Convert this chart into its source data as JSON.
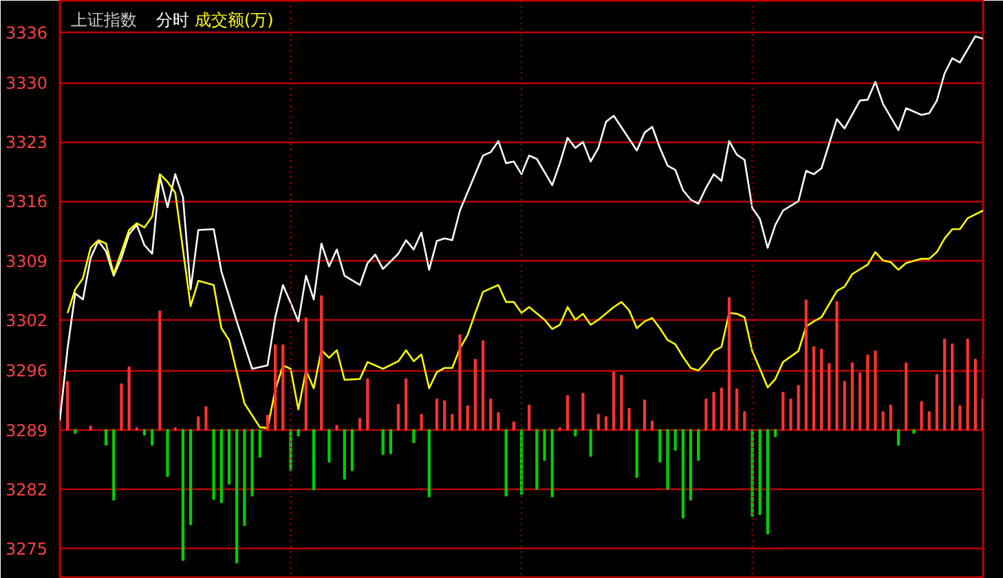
{
  "chart_data": {
    "type": "line",
    "title": "上证指数",
    "grid": true,
    "tick_labels": "y",
    "marker": "none",
    "line_style": "solid",
    "categories": [
      null,
      null,
      null,
      null,
      null,
      null,
      null,
      null,
      null,
      null,
      null,
      null,
      null,
      null,
      null,
      null,
      null,
      null,
      null,
      null,
      null,
      null,
      null,
      null,
      null,
      null,
      null,
      null,
      null,
      null,
      null,
      null,
      null,
      null,
      null,
      null,
      null,
      null,
      null,
      null,
      null,
      null,
      null,
      null,
      null,
      null,
      null,
      null,
      null,
      null,
      null,
      null,
      null,
      null,
      null,
      null,
      null,
      null,
      null,
      null,
      null,
      null,
      null,
      null,
      null,
      null,
      null,
      null,
      null,
      null,
      null,
      null,
      null,
      null,
      null,
      null,
      null,
      null,
      null,
      null,
      null,
      null,
      null,
      null,
      null,
      null,
      null,
      null,
      null,
      null,
      null,
      null,
      null,
      null,
      null,
      null,
      null,
      null,
      null,
      null,
      null,
      null,
      null,
      null,
      null,
      null,
      null,
      null,
      null,
      null,
      null,
      null,
      null,
      null,
      null,
      null,
      null,
      null,
      null,
      null,
      null
    ],
    "ylim": [
      3271.4,
      3339.7
    ],
    "yticks": [
      3275,
      3282,
      3289,
      3296,
      3302,
      3309,
      3316,
      3323,
      3330,
      3336
    ],
    "series": [
      {
        "name": "分时",
        "color": "#ffffff",
        "values": [
          3290.1,
          3298.6,
          3305.1,
          3304.4,
          3309.3,
          3311.3,
          3310.1,
          3307.2,
          3309.3,
          3312.1,
          3313.2,
          3310.8,
          3309.8,
          3318.9,
          3315.3,
          3319.2,
          3316.5,
          3305.6,
          3312.6,
          null,
          3312.7,
          3307.7,
          null,
          3301.8,
          null,
          3296.2,
          null,
          3296.6,
          3302.3,
          3306.1,
          3304.0,
          3301.8,
          3307.2,
          3304.4,
          3311.0,
          3308.3,
          3310.3,
          3307.2,
          null,
          3306.1,
          3308.7,
          3309.7,
          3308.0,
          null,
          3309.8,
          3311.4,
          3310.3,
          3312.3,
          3307.9,
          3311.3,
          3311.6,
          3311.4,
          3314.9,
          null,
          null,
          3321.4,
          3321.8,
          3323.1,
          3320.5,
          3320.7,
          3319.2,
          3321.4,
          3321.0,
          null,
          3317.9,
          3320.5,
          3323.5,
          3322.3,
          3323.0,
          3320.7,
          3322.3,
          3325.4,
          3326.1,
          null,
          null,
          3322.0,
          3324.1,
          3324.8,
          3322.3,
          3320.2,
          3319.7,
          3317.3,
          3316.2,
          3315.7,
          3317.6,
          3319.2,
          3318.4,
          3323.1,
          3321.5,
          3320.9,
          3315.2,
          3313.9,
          3310.5,
          3313.2,
          3314.9,
          null,
          3316.0,
          3319.6,
          3319.2,
          3319.9,
          null,
          3325.7,
          3324.6,
          null,
          3327.9,
          3328.0,
          3330.1,
          3327.5,
          null,
          3324.4,
          3327.0,
          null,
          3326.2,
          3326.4,
          3327.9,
          3331.1,
          3332.9,
          3332.4,
          null,
          3335.5,
          3335.2
        ]
      },
      {
        "name": "成交额(万)",
        "color": "#ffff00",
        "values": [
          null,
          3302.8,
          3305.6,
          3306.9,
          3310.5,
          3311.4,
          3311.0,
          3307.4,
          3310.0,
          3312.6,
          3313.4,
          3312.9,
          3314.2,
          3319.2,
          3318.3,
          3317.0,
          null,
          3303.6,
          3306.6,
          null,
          3306.1,
          3301.0,
          3299.6,
          3295.8,
          3292.1,
          null,
          3289.3,
          3289.2,
          3293.7,
          3296.6,
          3296.2,
          3291.4,
          3296.0,
          3293.9,
          3298.4,
          3297.5,
          3298.4,
          3294.9,
          null,
          3295.0,
          3297.0,
          null,
          3296.2,
          null,
          3297.1,
          3298.4,
          3297.1,
          3297.9,
          3293.9,
          3295.8,
          3296.3,
          3296.3,
          3298.6,
          3300.2,
          3302.8,
          3305.3,
          null,
          3306.1,
          3304.1,
          3304.1,
          3302.8,
          3303.5,
          null,
          3302.0,
          3300.9,
          3301.4,
          3303.5,
          3302.0,
          3302.7,
          3301.4,
          3302.0,
          null,
          3303.5,
          3304.1,
          3303.1,
          3301.0,
          3301.8,
          3302.2,
          3301.0,
          3299.6,
          3299.1,
          3297.6,
          3296.3,
          3296.0,
          3297.0,
          3298.3,
          3298.8,
          3302.8,
          3302.7,
          3302.3,
          3298.3,
          3296.2,
          3294.0,
          3295.0,
          3297.0,
          null,
          3298.3,
          3301.2,
          3301.8,
          3302.3,
          null,
          3305.4,
          3305.9,
          3307.4,
          null,
          3308.5,
          3310.0,
          3309.0,
          3308.8,
          3307.9,
          3308.7,
          null,
          3309.2,
          3309.2,
          3310.0,
          3311.6,
          3312.7,
          3312.7,
          3314.0,
          null,
          3314.9
        ]
      },
      {
        "type": "bar",
        "values": [
          null,
          5.7,
          -0.4,
          null,
          0.4,
          null,
          -1.8,
          -8.3,
          5.4,
          7.4,
          0.2,
          -0.6,
          -1.8,
          14.0,
          -5.5,
          0.2,
          -15.4,
          -11.2,
          1.5,
          2.7,
          -8.2,
          -8.6,
          -6.4,
          -15.7,
          -11.3,
          -7.8,
          -3.2,
          1.7,
          10.0,
          10.0,
          -4.8,
          -0.7,
          13.2,
          -7.1,
          15.8,
          -3.8,
          0.5,
          -5.8,
          -4.8,
          1.3,
          6.0,
          null,
          -2.9,
          -2.8,
          3.0,
          6.0,
          -1.5,
          1.8,
          -7.9,
          3.6,
          3.4,
          1.8,
          11.2,
          2.8,
          8.3,
          10.5,
          3.6,
          2.0,
          -7.8,
          0.9,
          -7.6,
          2.9,
          -7.0,
          -3.6,
          -7.9,
          0.2,
          4.0,
          -0.7,
          4.3,
          -3.1,
          1.8,
          1.5,
          6.8,
          6.4,
          2.5,
          -5.6,
          3.5,
          1.0,
          -3.8,
          -7.0,
          -2.4,
          -10.4,
          -8.3,
          -3.6,
          3.6,
          4.4,
          4.9,
          15.6,
          4.8,
          2.1,
          -10.2,
          -10.0,
          -12.3,
          -0.8,
          4.4,
          3.6,
          5.2,
          15.3,
          9.8,
          9.5,
          7.8,
          15.1,
          5.7,
          7.9,
          6.7,
          8.8,
          9.3,
          2.1,
          2.9,
          -1.8,
          7.9,
          -0.4,
          3.3,
          2.1,
          6.5,
          10.7,
          10.1,
          2.8,
          10.7,
          8.3,
          3.6
        ],
        "colors": [
          "#ff3232",
          "#ff3232",
          "#00d000",
          "#ff3232",
          "#ff3232",
          "#ff3232",
          "#00d000",
          "#00d000",
          "#ff3232",
          "#ff3232",
          "#ff3232",
          "#00d000",
          "#00d000",
          "#ff3232",
          "#00d000",
          "#ff3232",
          "#00d000",
          "#00d000",
          "#ff3232",
          "#ff3232",
          "#00d000",
          "#00d000",
          "#00d000",
          "#00d000",
          "#00d000",
          "#00d000",
          "#00d000",
          "#ff3232",
          "#ff3232",
          "#ff3232",
          "#00d000",
          "#00d000",
          "#ff3232",
          "#00d000",
          "#ff3232",
          "#00d000",
          "#ff3232",
          "#00d000",
          "#00d000",
          "#ff3232",
          "#ff3232",
          "#ff3232",
          "#00d000",
          "#00d000",
          "#ff3232",
          "#ff3232",
          "#00d000",
          "#ff3232",
          "#00d000",
          "#ff3232",
          "#ff3232",
          "#ff3232",
          "#ff3232",
          "#ff3232",
          "#ff3232",
          "#ff3232",
          "#ff3232",
          "#ff3232",
          "#00d000",
          "#ff3232",
          "#00d000",
          "#ff3232",
          "#00d000",
          "#00d000",
          "#00d000",
          "#ff3232",
          "#ff3232",
          "#00d000",
          "#ff3232",
          "#00d000",
          "#ff3232",
          "#ff3232",
          "#ff3232",
          "#ff3232",
          "#ff3232",
          "#00d000",
          "#ff3232",
          "#ff3232",
          "#00d000",
          "#00d000",
          "#00d000",
          "#00d000",
          "#00d000",
          "#00d000",
          "#ff3232",
          "#ff3232",
          "#ff3232",
          "#ff3232",
          "#ff3232",
          "#ff3232",
          "#00d000",
          "#00d000",
          "#00d000",
          "#00d000",
          "#ff3232",
          "#ff3232",
          "#ff3232",
          "#ff3232",
          "#ff3232",
          "#ff3232",
          "#ff3232",
          "#ff3232",
          "#ff3232",
          "#ff3232",
          "#ff3232",
          "#ff3232",
          "#ff3232",
          "#ff3232",
          "#ff3232",
          "#00d000",
          "#ff3232",
          "#00d000",
          "#ff3232",
          "#ff3232",
          "#ff3232",
          "#ff3232",
          "#ff3232",
          "#ff3232",
          "#ff3232",
          "#ff3232",
          "#ff3232"
        ],
        "base": [
          null,
          3289,
          3289,
          null,
          3289,
          null,
          3289,
          3289,
          3289,
          3289,
          3289,
          3289,
          3289,
          3289,
          3289,
          3289,
          3289,
          3289,
          3289,
          3289,
          3289,
          3289,
          3289,
          3289,
          3289,
          3289,
          3289,
          3289,
          3289,
          3289,
          3289,
          3289,
          3289,
          3289,
          3289,
          3289,
          3289,
          3289,
          3289,
          3289,
          3289,
          null,
          3289,
          3289,
          3289,
          3289,
          3289,
          3289,
          3289,
          3289,
          3289,
          3289,
          3289,
          3289,
          3289,
          3289,
          3289,
          3289,
          3289,
          3289,
          3289,
          3289,
          3289,
          3289,
          3289,
          3289,
          3289,
          3289,
          3289,
          3289,
          3289,
          3289,
          3289,
          3289,
          3289,
          3289,
          3289,
          3289,
          3289,
          3289,
          3289,
          3289,
          3289,
          3289,
          3289,
          3289,
          3289,
          3289,
          3289,
          3289,
          3289,
          3289,
          3289,
          3289,
          3289,
          3289,
          3289,
          3289,
          3289,
          3289,
          3289,
          3289,
          3289,
          3289,
          3289,
          3289,
          3289,
          3289,
          3289,
          3289,
          3289,
          3289,
          3289,
          3289,
          3289,
          3289,
          3289,
          3289,
          3289,
          3289,
          3289
        ]
      }
    ]
  }
}
